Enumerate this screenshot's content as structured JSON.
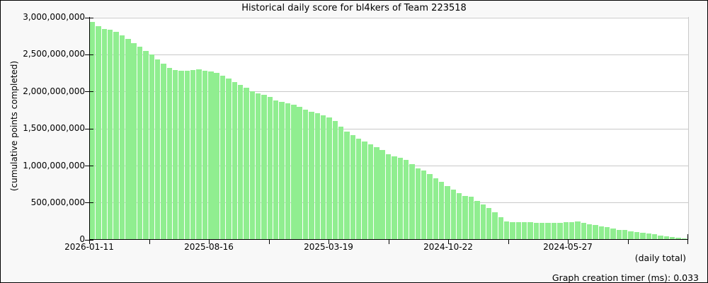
{
  "title": "Historical daily score for bl4kers of Team 223518",
  "y_axis": {
    "title": "(cumulative points completed)",
    "tick_labels": [
      "3,000,000,000",
      "2,500,000,000",
      "2,000,000,000",
      "1,500,000,000",
      "1,000,000,000",
      "500,000,000",
      "0"
    ]
  },
  "x_axis": {
    "tick_labels": [
      "2026-01-11",
      "2025-08-16",
      "2025-03-19",
      "2024-10-22",
      "2024-05-27"
    ]
  },
  "footer": {
    "daily_total_label": "(daily total)",
    "timer_text": "Graph creation timer (ms): 0.033"
  },
  "colors": {
    "bar": "#90EE90",
    "grid": "#c9c9c9",
    "axis": "#000000",
    "plot_bg": "#ffffff",
    "page_bg": "#f8f8f8"
  },
  "chart_data": {
    "type": "bar",
    "title": "Historical daily score for bl4kers of Team 223518",
    "ylabel": "(cumulative points completed)",
    "xlabel": "(daily total)",
    "unit": "points",
    "ylim": [
      0,
      3000000000
    ],
    "y_tick_interval": 500000000,
    "grid": true,
    "x_direction": "newest-date-on-left",
    "x_tick_labels": [
      "2026-01-11",
      "2025-08-16",
      "2025-03-19",
      "2024-10-22",
      "2024-05-27"
    ],
    "values": [
      2930000000,
      2875000000,
      2835000000,
      2830000000,
      2800000000,
      2755000000,
      2700000000,
      2650000000,
      2600000000,
      2545000000,
      2490000000,
      2430000000,
      2370000000,
      2310000000,
      2280000000,
      2275000000,
      2270000000,
      2285000000,
      2290000000,
      2275000000,
      2265000000,
      2245000000,
      2205000000,
      2165000000,
      2120000000,
      2080000000,
      2040000000,
      2000000000,
      1965000000,
      1945000000,
      1920000000,
      1875000000,
      1855000000,
      1835000000,
      1815000000,
      1785000000,
      1745000000,
      1715000000,
      1700000000,
      1670000000,
      1640000000,
      1600000000,
      1520000000,
      1455000000,
      1400000000,
      1360000000,
      1320000000,
      1280000000,
      1240000000,
      1205000000,
      1150000000,
      1115000000,
      1100000000,
      1070000000,
      1010000000,
      955000000,
      930000000,
      875000000,
      820000000,
      770000000,
      720000000,
      670000000,
      625000000,
      580000000,
      575000000,
      520000000,
      465000000,
      420000000,
      360000000,
      300000000,
      235000000,
      225000000,
      225000000,
      225000000,
      225000000,
      220000000,
      215000000,
      215000000,
      215000000,
      220000000,
      225000000,
      230000000,
      240000000,
      220000000,
      205000000,
      190000000,
      172000000,
      160000000,
      140000000,
      125000000,
      122000000,
      105000000,
      95000000,
      85000000,
      75000000,
      65000000,
      50000000,
      40000000,
      25000000,
      15000000,
      7000000
    ]
  }
}
